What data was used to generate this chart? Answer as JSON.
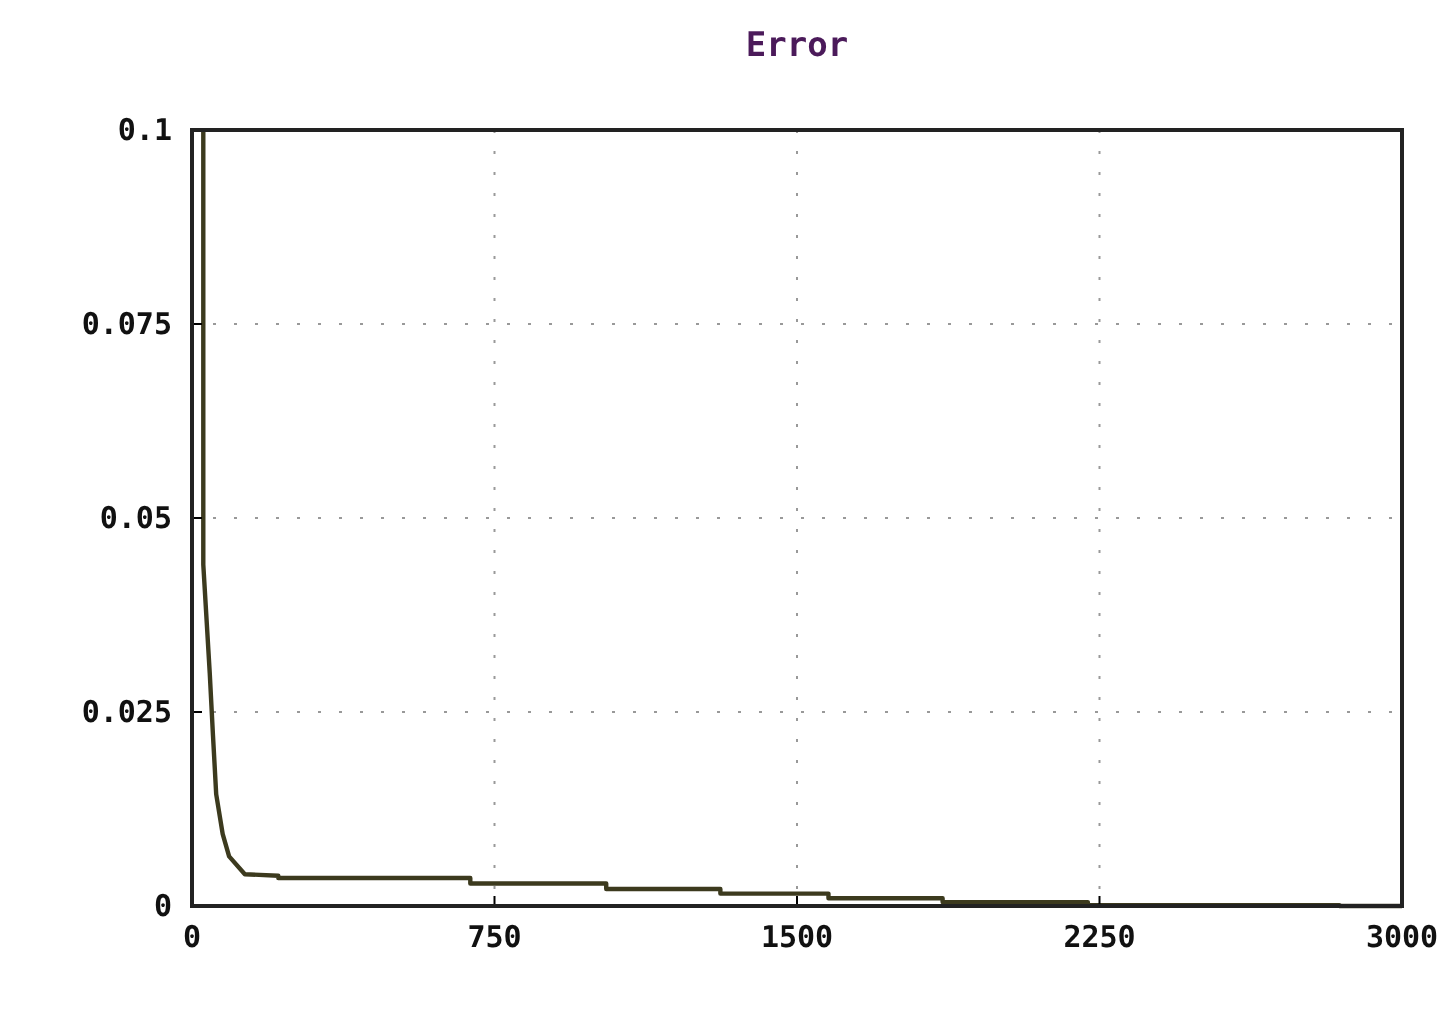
{
  "chart_data": {
    "type": "line",
    "title": "Error",
    "x": [
      28,
      28,
      44,
      52,
      60,
      76,
      92,
      131,
      214,
      214,
      690,
      690,
      1027,
      1027,
      1310,
      1310,
      1578,
      1578,
      1861,
      1861,
      2221,
      2221,
      2845,
      2845,
      3000
    ],
    "series": [
      {
        "color": "#3c3a1e",
        "values": [
          0.1,
          0.044,
          0.03,
          0.022,
          0.0144,
          0.0093,
          0.0064,
          0.0041,
          0.0039,
          0.0036,
          0.0036,
          0.0029,
          0.0029,
          0.0022,
          0.0022,
          0.0016,
          0.0016,
          0.001,
          0.001,
          0.0005,
          0.0005,
          0.0001,
          0.0001,
          0,
          0
        ]
      }
    ],
    "xlim": [
      0,
      3000
    ],
    "xticks": [
      0,
      750,
      1500,
      2250,
      3000
    ],
    "ylim": [
      0,
      0.1
    ],
    "yticks": [
      0,
      0.025,
      0.05,
      0.075,
      0.1
    ],
    "grid": true,
    "line_style": "solid",
    "marker": "none"
  }
}
